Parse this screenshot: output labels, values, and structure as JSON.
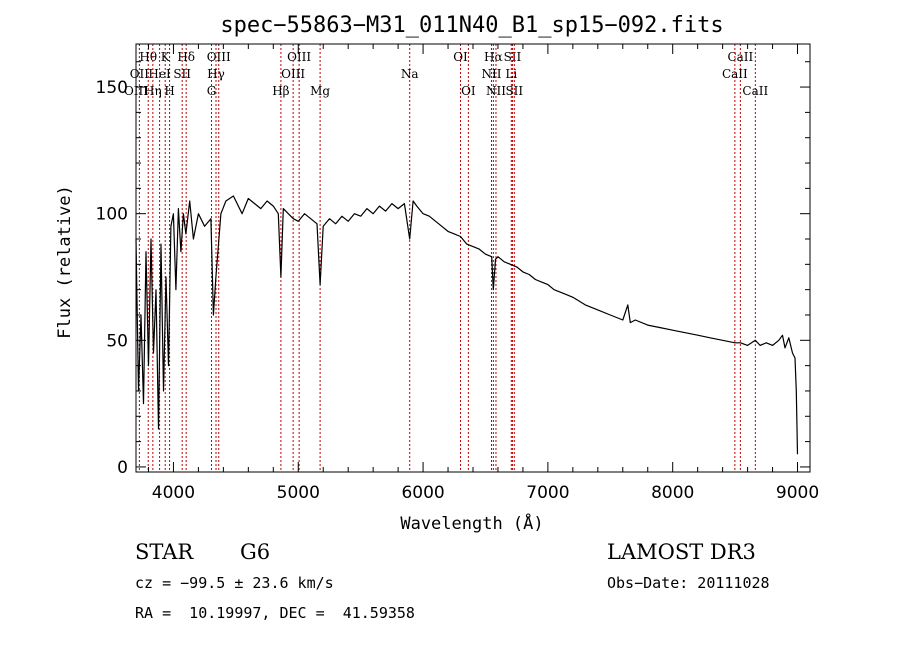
{
  "chart_data": {
    "type": "line",
    "title": "spec−55863−M31_011N40_B1_sp15−092.fits",
    "xlabel": "Wavelength (Å)",
    "ylabel": "Flux (relative)",
    "xlim": [
      3700,
      9100
    ],
    "ylim": [
      -2,
      167
    ],
    "xticks": [
      4000,
      5000,
      6000,
      7000,
      8000,
      9000
    ],
    "yticks": [
      0,
      50,
      100,
      150
    ],
    "series": [
      {
        "name": "flux",
        "x": [
          3700,
          3720,
          3740,
          3760,
          3780,
          3800,
          3820,
          3840,
          3860,
          3880,
          3900,
          3920,
          3940,
          3960,
          3980,
          4000,
          4020,
          4040,
          4060,
          4080,
          4100,
          4130,
          4160,
          4200,
          4250,
          4300,
          4320,
          4340,
          4380,
          4420,
          4480,
          4550,
          4600,
          4650,
          4700,
          4750,
          4800,
          4840,
          4861,
          4880,
          4920,
          4960,
          5000,
          5050,
          5100,
          5150,
          5175,
          5200,
          5250,
          5300,
          5350,
          5400,
          5450,
          5500,
          5550,
          5600,
          5650,
          5700,
          5750,
          5800,
          5850,
          5893,
          5920,
          5950,
          6000,
          6050,
          6100,
          6150,
          6200,
          6250,
          6300,
          6350,
          6400,
          6450,
          6500,
          6550,
          6563,
          6580,
          6600,
          6650,
          6700,
          6750,
          6800,
          6850,
          6900,
          6950,
          7000,
          7050,
          7100,
          7150,
          7200,
          7300,
          7400,
          7500,
          7600,
          7640,
          7660,
          7700,
          7800,
          7900,
          8000,
          8100,
          8200,
          8300,
          8400,
          8498,
          8542,
          8600,
          8662,
          8700,
          8750,
          8800,
          8850,
          8880,
          8900,
          8930,
          8960,
          8980,
          8990,
          9000
        ],
        "values": [
          90,
          30,
          60,
          25,
          85,
          40,
          90,
          45,
          70,
          15,
          88,
          30,
          75,
          40,
          95,
          100,
          70,
          102,
          85,
          100,
          92,
          105,
          90,
          100,
          95,
          98,
          60,
          75,
          100,
          105,
          107,
          100,
          106,
          104,
          102,
          105,
          103,
          100,
          75,
          102,
          100,
          98,
          97,
          100,
          98,
          96,
          72,
          95,
          98,
          96,
          99,
          97,
          100,
          99,
          102,
          100,
          103,
          101,
          104,
          102,
          104,
          90,
          105,
          103,
          100,
          99,
          97,
          95,
          93,
          92,
          91,
          88,
          87,
          86,
          84,
          83,
          70,
          82,
          83,
          81,
          80,
          79,
          77,
          76,
          74,
          73,
          72,
          70,
          69,
          68,
          67,
          64,
          62,
          60,
          58,
          64,
          57,
          58,
          56,
          55,
          54,
          53,
          52,
          51,
          50,
          49,
          49,
          48,
          50,
          48,
          49,
          48,
          50,
          52,
          47,
          51,
          45,
          43,
          30,
          5
        ]
      }
    ],
    "lines": [
      {
        "label": "Hθ",
        "wave": 3798,
        "row": 0
      },
      {
        "label": "OII",
        "wave": 3727,
        "row": 1
      },
      {
        "label": "OIII",
        "wave": 3700,
        "row": 2
      },
      {
        "label": "K",
        "wave": 3934,
        "row": 0
      },
      {
        "label": "HeI",
        "wave": 3889,
        "row": 1
      },
      {
        "label": "Hη",
        "wave": 3835,
        "row": 2
      },
      {
        "label": "Hδ",
        "wave": 4102,
        "row": 0
      },
      {
        "label": "SII",
        "wave": 4070,
        "row": 1
      },
      {
        "label": "H",
        "wave": 3969,
        "row": 2
      },
      {
        "label": "OIII",
        "wave": 4363,
        "row": 0
      },
      {
        "label": "Hγ",
        "wave": 4341,
        "row": 1
      },
      {
        "label": "G",
        "wave": 4305,
        "row": 2
      },
      {
        "label": "OIII",
        "wave": 5007,
        "row": 0
      },
      {
        "label": "OIII",
        "wave": 4959,
        "row": 1
      },
      {
        "label": "Hβ",
        "wave": 4861,
        "row": 2
      },
      {
        "label": "Mg",
        "wave": 5175,
        "row": 2
      },
      {
        "label": "Na",
        "wave": 5893,
        "row": 1
      },
      {
        "label": "OI",
        "wave": 6300,
        "row": 0
      },
      {
        "label": "OI",
        "wave": 6363,
        "row": 2
      },
      {
        "label": "Hα",
        "wave": 6563,
        "row": 0
      },
      {
        "label": "SII",
        "wave": 6716,
        "row": 0
      },
      {
        "label": "NII",
        "wave": 6548,
        "row": 1
      },
      {
        "label": "Li",
        "wave": 6707,
        "row": 1
      },
      {
        "label": "NII",
        "wave": 6584,
        "row": 2
      },
      {
        "label": "SII",
        "wave": 6731,
        "row": 2
      },
      {
        "label": "CaII",
        "wave": 8542,
        "row": 0
      },
      {
        "label": "CaII",
        "wave": 8498,
        "row": 1
      },
      {
        "label": "CaII",
        "wave": 8662,
        "row": 2
      }
    ]
  },
  "info": {
    "class": "STAR",
    "subclass": "G6",
    "survey": "LAMOST DR3",
    "cz": "cz = −99.5 ± 23.6 km/s",
    "obs_date": "Obs−Date: 20111028",
    "radec": "RA =  10.19997, DEC =  41.59358"
  }
}
